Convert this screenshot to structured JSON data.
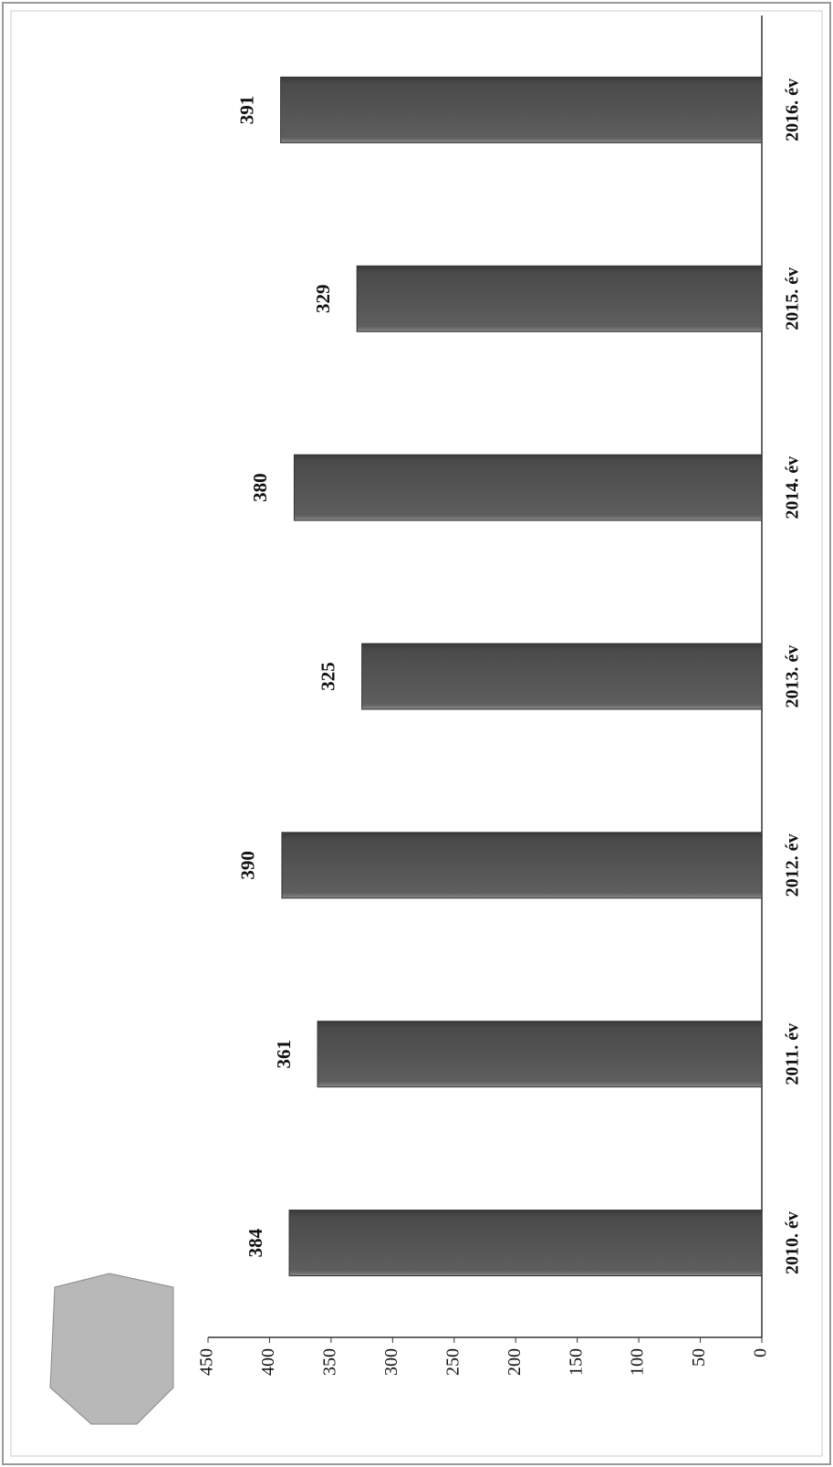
{
  "chart_data": {
    "type": "bar",
    "categories": [
      "2010. év",
      "2011. év",
      "2012. év",
      "2013. év",
      "2014. év",
      "2015. év",
      "2016. év"
    ],
    "values": [
      384,
      361,
      390,
      325,
      380,
      329,
      391
    ],
    "color": "#5a5a5a",
    "ylim": [
      0,
      450
    ],
    "yticks": [
      0,
      50,
      100,
      150,
      200,
      250,
      300,
      350,
      400,
      450
    ],
    "grid": false
  }
}
